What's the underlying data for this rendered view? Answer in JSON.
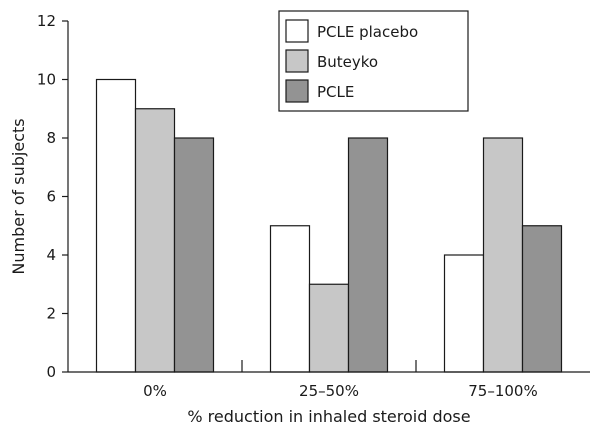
{
  "chart_data": {
    "type": "bar",
    "title": "",
    "xlabel": "% reduction in inhaled steroid dose",
    "ylabel": "Number of subjects",
    "categories": [
      "0%",
      "25–50%",
      "75–100%"
    ],
    "series": [
      {
        "name": "PCLE placebo",
        "color": "#ffffff",
        "values": [
          10,
          5,
          4
        ]
      },
      {
        "name": "Buteyko",
        "color": "#c7c7c7",
        "values": [
          9,
          3,
          8
        ]
      },
      {
        "name": "PCLE",
        "color": "#939393",
        "values": [
          8,
          8,
          5
        ]
      }
    ],
    "ylim": [
      0,
      12
    ],
    "yticks": [
      0,
      2,
      4,
      6,
      8,
      10,
      12
    ],
    "grid": false,
    "legend_position": "top-right"
  }
}
